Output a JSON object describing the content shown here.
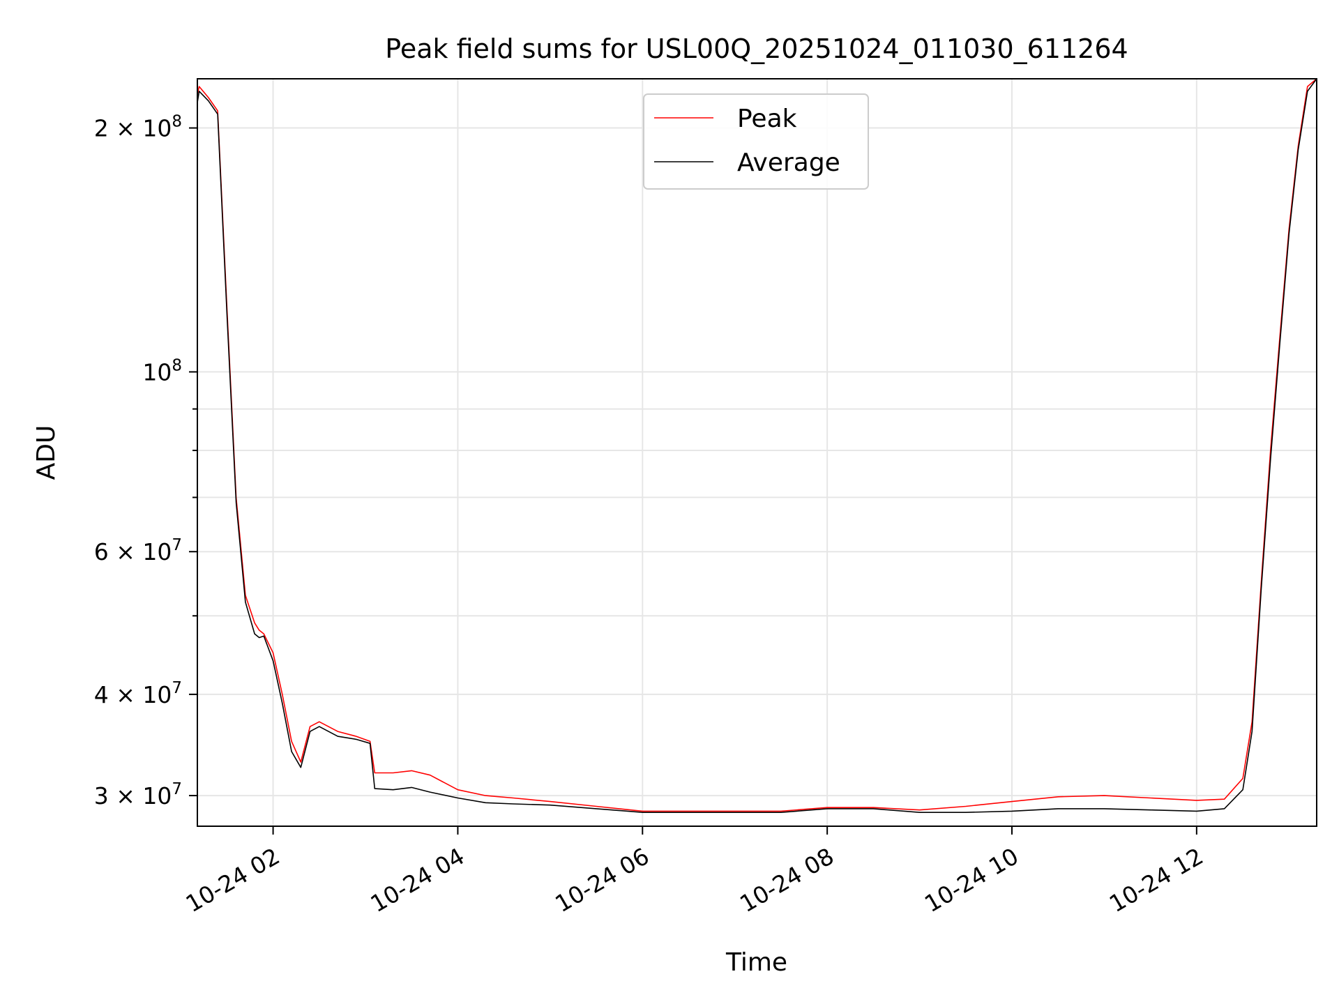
{
  "chart_data": {
    "type": "line",
    "title": "Peak field sums for USL00Q_20251024_011030_611264",
    "xlabel": "Time",
    "ylabel": "ADU",
    "yscale": "log",
    "grid": true,
    "legend_position": "top-center",
    "xlim_hours": [
      1.18,
      13.3
    ],
    "ylim": [
      27500000,
      230000000
    ],
    "x_ticks": [
      {
        "value": 2,
        "label": "10-24 02"
      },
      {
        "value": 4,
        "label": "10-24 04"
      },
      {
        "value": 6,
        "label": "10-24 06"
      },
      {
        "value": 8,
        "label": "10-24 08"
      },
      {
        "value": 10,
        "label": "10-24 10"
      },
      {
        "value": 12,
        "label": "10-24 12"
      }
    ],
    "y_ticks": [
      {
        "value": 30000000,
        "base": "3 × 10",
        "exp": "7"
      },
      {
        "value": 40000000,
        "base": "4 × 10",
        "exp": "7"
      },
      {
        "value": 60000000,
        "base": "6 × 10",
        "exp": "7"
      },
      {
        "value": 100000000,
        "base": "10",
        "exp": "8"
      },
      {
        "value": 200000000,
        "base": "2 × 10",
        "exp": "8"
      }
    ],
    "y_minor_ticks": [
      50000000,
      70000000,
      80000000,
      90000000
    ],
    "series": [
      {
        "name": "Peak",
        "color": "#ff0000",
        "x": [
          1.18,
          1.2,
          1.3,
          1.4,
          1.5,
          1.6,
          1.7,
          1.8,
          1.85,
          1.9,
          2.0,
          2.1,
          2.2,
          2.3,
          2.4,
          2.5,
          2.7,
          2.9,
          3.05,
          3.1,
          3.3,
          3.5,
          3.7,
          4.0,
          4.3,
          4.6,
          5.0,
          5.5,
          6.0,
          6.5,
          7.0,
          7.5,
          8.0,
          8.5,
          9.0,
          9.5,
          10.0,
          10.5,
          11.0,
          11.5,
          12.0,
          12.3,
          12.5,
          12.6,
          12.7,
          12.8,
          12.9,
          13.0,
          13.1,
          13.2,
          13.3
        ],
        "y": [
          220000000,
          225000000,
          218000000,
          210000000,
          120000000,
          70000000,
          53000000,
          49000000,
          48000000,
          47500000,
          45000000,
          40000000,
          35000000,
          33000000,
          36500000,
          37000000,
          36000000,
          35500000,
          35000000,
          32000000,
          32000000,
          32200000,
          31800000,
          30500000,
          30000000,
          29800000,
          29500000,
          29100000,
          28700000,
          28700000,
          28700000,
          28700000,
          29000000,
          29000000,
          28800000,
          29100000,
          29500000,
          29900000,
          30000000,
          29800000,
          29600000,
          29700000,
          31500000,
          37000000,
          55000000,
          80000000,
          110000000,
          150000000,
          190000000,
          225000000,
          230000000
        ]
      },
      {
        "name": "Average",
        "color": "#000000",
        "x": [
          1.18,
          1.2,
          1.3,
          1.4,
          1.5,
          1.6,
          1.7,
          1.8,
          1.85,
          1.9,
          2.0,
          2.1,
          2.2,
          2.3,
          2.4,
          2.5,
          2.7,
          2.9,
          3.05,
          3.1,
          3.3,
          3.5,
          3.7,
          4.0,
          4.3,
          4.6,
          5.0,
          5.5,
          6.0,
          6.5,
          7.0,
          7.5,
          8.0,
          8.5,
          9.0,
          9.5,
          10.0,
          10.5,
          11.0,
          11.5,
          12.0,
          12.3,
          12.5,
          12.6,
          12.7,
          12.8,
          12.9,
          13.0,
          13.1,
          13.2,
          13.3
        ],
        "y": [
          215000000,
          222000000,
          216000000,
          208000000,
          118000000,
          69000000,
          52000000,
          47500000,
          47000000,
          47200000,
          44000000,
          39000000,
          34000000,
          32500000,
          36000000,
          36500000,
          35500000,
          35200000,
          34800000,
          30600000,
          30500000,
          30700000,
          30300000,
          29800000,
          29400000,
          29300000,
          29200000,
          28900000,
          28600000,
          28600000,
          28600000,
          28600000,
          28900000,
          28900000,
          28600000,
          28600000,
          28700000,
          28900000,
          28900000,
          28800000,
          28700000,
          28900000,
          30500000,
          36000000,
          54000000,
          78000000,
          108000000,
          148000000,
          188000000,
          222000000,
          230000000
        ]
      }
    ]
  }
}
